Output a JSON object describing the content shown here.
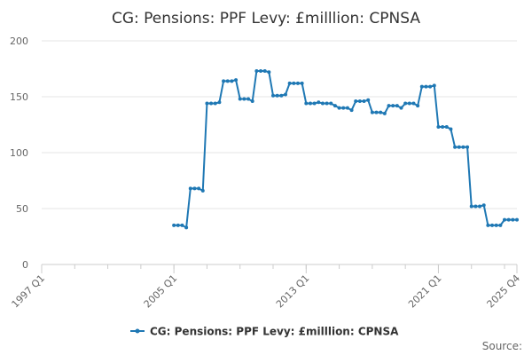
{
  "chart_data": {
    "type": "line",
    "title": "CG: Pensions: PPF Levy: £milllion: CPNSA",
    "xlabel": "",
    "ylabel": "",
    "ylim": [
      0,
      200
    ],
    "yticks": [
      "0",
      "50",
      "100",
      "150",
      "200"
    ],
    "x_range": [
      "1997 Q1",
      "2025 Q4"
    ],
    "xticks": [
      "1997 Q1",
      "2005 Q1",
      "2013 Q1",
      "2021 Q1",
      "2025 Q4"
    ],
    "grid": "horizontal",
    "legend_position": "bottom",
    "series": [
      {
        "name": "CG: Pensions: PPF Levy: £milllion: CPNSA",
        "color": "#1f78b4",
        "x": [
          "2005 Q1",
          "2005 Q2",
          "2005 Q3",
          "2005 Q4",
          "2006 Q1",
          "2006 Q2",
          "2006 Q3",
          "2006 Q4",
          "2007 Q1",
          "2007 Q2",
          "2007 Q3",
          "2007 Q4",
          "2008 Q1",
          "2008 Q2",
          "2008 Q3",
          "2008 Q4",
          "2009 Q1",
          "2009 Q2",
          "2009 Q3",
          "2009 Q4",
          "2010 Q1",
          "2010 Q2",
          "2010 Q3",
          "2010 Q4",
          "2011 Q1",
          "2011 Q2",
          "2011 Q3",
          "2011 Q4",
          "2012 Q1",
          "2012 Q2",
          "2012 Q3",
          "2012 Q4",
          "2013 Q1",
          "2013 Q2",
          "2013 Q3",
          "2013 Q4",
          "2014 Q1",
          "2014 Q2",
          "2014 Q3",
          "2014 Q4",
          "2015 Q1",
          "2015 Q2",
          "2015 Q3",
          "2015 Q4",
          "2016 Q1",
          "2016 Q2",
          "2016 Q3",
          "2016 Q4",
          "2017 Q1",
          "2017 Q2",
          "2017 Q3",
          "2017 Q4",
          "2018 Q1",
          "2018 Q2",
          "2018 Q3",
          "2018 Q4",
          "2019 Q1",
          "2019 Q2",
          "2019 Q3",
          "2019 Q4",
          "2020 Q1",
          "2020 Q2",
          "2020 Q3",
          "2020 Q4",
          "2021 Q1",
          "2021 Q2",
          "2021 Q3",
          "2021 Q4",
          "2022 Q1",
          "2022 Q2",
          "2022 Q3",
          "2022 Q4",
          "2023 Q1",
          "2023 Q2",
          "2023 Q3",
          "2023 Q4",
          "2024 Q1",
          "2024 Q2",
          "2024 Q3",
          "2024 Q4",
          "2025 Q1",
          "2025 Q2",
          "2025 Q3",
          "2025 Q4"
        ],
        "values": [
          35,
          35,
          35,
          33,
          68,
          68,
          68,
          66,
          144,
          144,
          144,
          145,
          164,
          164,
          164,
          165,
          148,
          148,
          148,
          146,
          173,
          173,
          173,
          172,
          151,
          151,
          151,
          152,
          162,
          162,
          162,
          162,
          144,
          144,
          144,
          145,
          144,
          144,
          144,
          142,
          140,
          140,
          140,
          138,
          146,
          146,
          146,
          147,
          136,
          136,
          136,
          135,
          142,
          142,
          142,
          140,
          144,
          144,
          144,
          142,
          159,
          159,
          159,
          160,
          123,
          123,
          123,
          121,
          105,
          105,
          105,
          105,
          52,
          52,
          52,
          53,
          35,
          35,
          35,
          35,
          40,
          40,
          40,
          40
        ]
      }
    ]
  },
  "footer": {
    "source_label": "Source:"
  }
}
